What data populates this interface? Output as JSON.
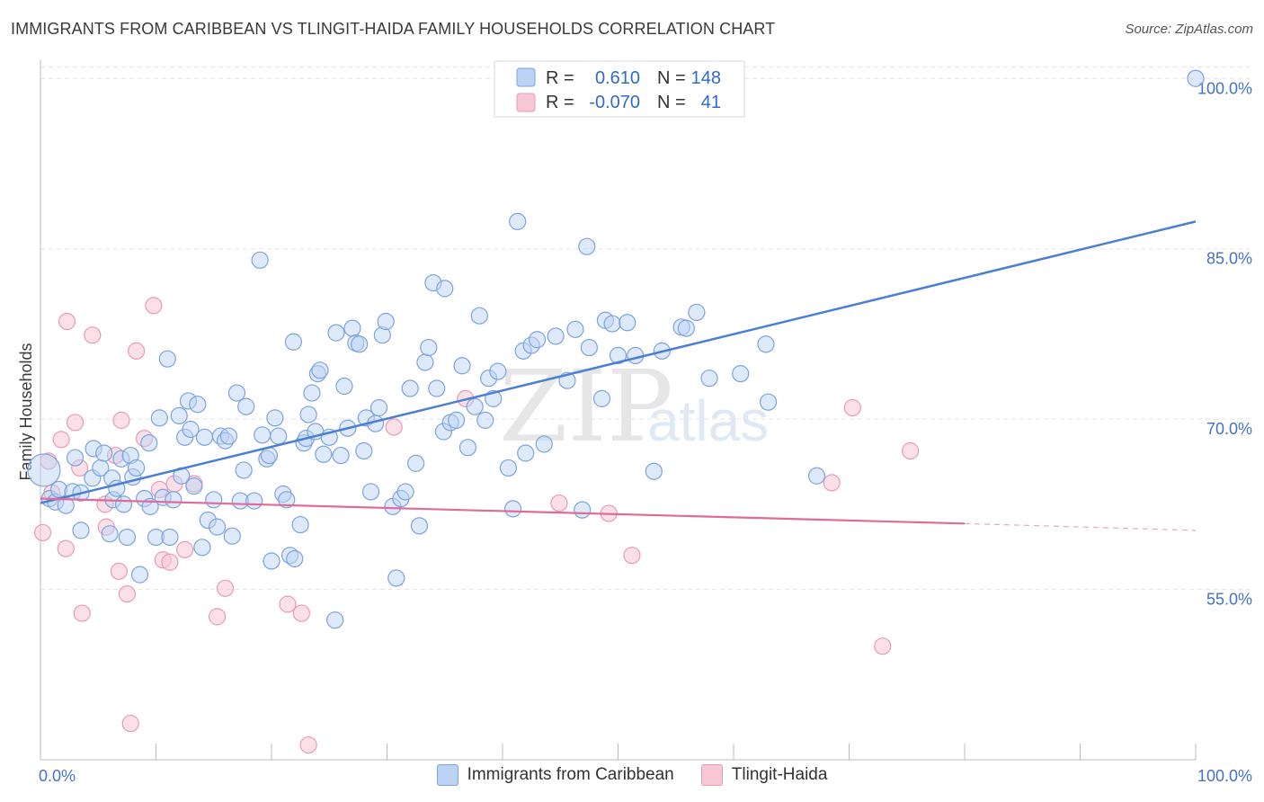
{
  "title": "IMMIGRANTS FROM CARIBBEAN VS TLINGIT-HAIDA FAMILY HOUSEHOLDS CORRELATION CHART",
  "source": "Source: ZipAtlas.com",
  "watermark": {
    "zip": "ZIP",
    "atlas": "atlas"
  },
  "colors": {
    "blue": "#4a7fd4",
    "blue_fill": "#bdd3f3",
    "pink": "#e06b98",
    "pink_fill": "#f7c7d6",
    "tick": "#4472c4"
  },
  "legend": {
    "r_label": "R =",
    "n_label": "N =",
    "rows": [
      {
        "r": "0.610",
        "n": "148"
      },
      {
        "r": "-0.070",
        "n": "41"
      }
    ]
  },
  "bottom_legend": {
    "blue": "Immigrants from Caribbean",
    "pink": "Tlingit-Haida"
  },
  "chart_data": {
    "type": "scatter",
    "ylabel": "Family Households",
    "xlim": [
      0,
      100
    ],
    "ylim": [
      40,
      102
    ],
    "x_tick_labels": [
      "0.0%",
      "100.0%"
    ],
    "y_ticks": [
      55,
      70,
      85,
      100
    ],
    "y_tick_labels": [
      "55.0%",
      "70.0%",
      "85.0%",
      "100.0%"
    ],
    "grid": true,
    "series": [
      {
        "name": "Immigrants from Caribbean",
        "trend": {
          "x": [
            0,
            100
          ],
          "y": [
            62.6,
            87.4
          ]
        },
        "points": [
          [
            0.3,
            65.5
          ],
          [
            0.8,
            63
          ],
          [
            1.3,
            62.7
          ],
          [
            1.6,
            63.8
          ],
          [
            2.2,
            62.4
          ],
          [
            2.8,
            63.6
          ],
          [
            3,
            66.6
          ],
          [
            3.5,
            63.5
          ],
          [
            3.5,
            60.2
          ],
          [
            4.5,
            64.8
          ],
          [
            4.6,
            67.4
          ],
          [
            5.2,
            65.7
          ],
          [
            5.5,
            67
          ],
          [
            6,
            59.9
          ],
          [
            6.2,
            64.8
          ],
          [
            6.3,
            62.9
          ],
          [
            6.6,
            63.9
          ],
          [
            7,
            66.5
          ],
          [
            7.2,
            62.5
          ],
          [
            7.5,
            59.6
          ],
          [
            7.8,
            66.8
          ],
          [
            8,
            64.9
          ],
          [
            8.3,
            65.7
          ],
          [
            8.6,
            56.3
          ],
          [
            9,
            63
          ],
          [
            9.4,
            67.9
          ],
          [
            9.5,
            62.3
          ],
          [
            10,
            59.6
          ],
          [
            10.3,
            70.1
          ],
          [
            10.6,
            63.1
          ],
          [
            11,
            75.3
          ],
          [
            11.2,
            59.6
          ],
          [
            11.5,
            62.9
          ],
          [
            12,
            70.3
          ],
          [
            12.2,
            65
          ],
          [
            12.5,
            68.4
          ],
          [
            12.8,
            71.6
          ],
          [
            13,
            69.1
          ],
          [
            13.3,
            64.1
          ],
          [
            13.6,
            71.3
          ],
          [
            14,
            58.7
          ],
          [
            14.2,
            68.4
          ],
          [
            14.5,
            61.1
          ],
          [
            15,
            62.9
          ],
          [
            15.3,
            60.5
          ],
          [
            15.6,
            68.5
          ],
          [
            16,
            68.1
          ],
          [
            16.3,
            68.5
          ],
          [
            16.6,
            59.7
          ],
          [
            17,
            72.3
          ],
          [
            17.3,
            62.8
          ],
          [
            17.6,
            65.5
          ],
          [
            17.8,
            71.1
          ],
          [
            18.5,
            62.8
          ],
          [
            19,
            84
          ],
          [
            19.2,
            68.6
          ],
          [
            19.6,
            66.5
          ],
          [
            19.8,
            66.8
          ],
          [
            20,
            57.5
          ],
          [
            20.3,
            70.1
          ],
          [
            20.6,
            68.5
          ],
          [
            21,
            63.4
          ],
          [
            21.3,
            62.9
          ],
          [
            21.6,
            58
          ],
          [
            21.9,
            76.8
          ],
          [
            22,
            57.7
          ],
          [
            22.5,
            60.7
          ],
          [
            22.8,
            67.9
          ],
          [
            23,
            68.3
          ],
          [
            23.2,
            70.4
          ],
          [
            23.5,
            72.3
          ],
          [
            23.8,
            68.9
          ],
          [
            24,
            74
          ],
          [
            24.2,
            74.3
          ],
          [
            24.5,
            66.9
          ],
          [
            25,
            68.4
          ],
          [
            25.5,
            52.3
          ],
          [
            25.6,
            77.6
          ],
          [
            26,
            66.8
          ],
          [
            26.3,
            72.9
          ],
          [
            26.6,
            69.2
          ],
          [
            27,
            78
          ],
          [
            27.3,
            76.7
          ],
          [
            27.6,
            76.6
          ],
          [
            28,
            67.2
          ],
          [
            28.2,
            70.1
          ],
          [
            28.6,
            63.6
          ],
          [
            29,
            69.6
          ],
          [
            29.3,
            71
          ],
          [
            29.6,
            77.4
          ],
          [
            29.9,
            78.6
          ],
          [
            30.5,
            62.3
          ],
          [
            30.8,
            56
          ],
          [
            31.2,
            63
          ],
          [
            31.6,
            63.6
          ],
          [
            32,
            72.7
          ],
          [
            32.5,
            66.1
          ],
          [
            32.8,
            60.6
          ],
          [
            33.3,
            75
          ],
          [
            33.6,
            76.3
          ],
          [
            34,
            82
          ],
          [
            34.3,
            72.7
          ],
          [
            34.9,
            68.9
          ],
          [
            35,
            81.5
          ],
          [
            35.5,
            69.7
          ],
          [
            36,
            69.9
          ],
          [
            36.5,
            74.7
          ],
          [
            37,
            67.5
          ],
          [
            37.6,
            71.1
          ],
          [
            38,
            79.1
          ],
          [
            38.5,
            69.9
          ],
          [
            38.8,
            73.6
          ],
          [
            39.2,
            71.8
          ],
          [
            39.6,
            74.2
          ],
          [
            40.5,
            65.7
          ],
          [
            40.9,
            62.1
          ],
          [
            41.3,
            87.4
          ],
          [
            41.8,
            76
          ],
          [
            42,
            67
          ],
          [
            42.5,
            76.5
          ],
          [
            43,
            77
          ],
          [
            43.6,
            67.8
          ],
          [
            44.6,
            77.3
          ],
          [
            45.6,
            73.4
          ],
          [
            46.3,
            77.9
          ],
          [
            46.9,
            62
          ],
          [
            47.3,
            85.2
          ],
          [
            47.5,
            76.3
          ],
          [
            48.6,
            71.8
          ],
          [
            48.9,
            78.7
          ],
          [
            49.5,
            78.4
          ],
          [
            50,
            75.6
          ],
          [
            50.8,
            78.5
          ],
          [
            51.5,
            75.6
          ],
          [
            53.1,
            65.4
          ],
          [
            53.8,
            76
          ],
          [
            55.5,
            78.1
          ],
          [
            55.9,
            78
          ],
          [
            56.8,
            79.4
          ],
          [
            57.9,
            73.6
          ],
          [
            60.6,
            74
          ],
          [
            62.8,
            76.6
          ],
          [
            63,
            71.5
          ],
          [
            67.2,
            65
          ],
          [
            100,
            100
          ]
        ]
      },
      {
        "name": "Tlingit-Haida",
        "trend": {
          "x": [
            0,
            80
          ],
          "y": [
            63.0,
            60.8
          ],
          "dash_to": [
            100,
            60.2
          ]
        },
        "points": [
          [
            0.2,
            60
          ],
          [
            0.7,
            66.3
          ],
          [
            1,
            63.5
          ],
          [
            1.8,
            68.2
          ],
          [
            2.2,
            58.6
          ],
          [
            2.3,
            78.6
          ],
          [
            3,
            69.7
          ],
          [
            3.4,
            65.7
          ],
          [
            3.6,
            52.9
          ],
          [
            4.5,
            77.4
          ],
          [
            5.7,
            60.5
          ],
          [
            5.6,
            62.5
          ],
          [
            6.5,
            66.8
          ],
          [
            6.8,
            56.6
          ],
          [
            7,
            69.9
          ],
          [
            7.5,
            54.6
          ],
          [
            7.8,
            43.2
          ],
          [
            8.3,
            76
          ],
          [
            9,
            68.3
          ],
          [
            9.8,
            80
          ],
          [
            10.3,
            63.8
          ],
          [
            10.6,
            57.6
          ],
          [
            11.2,
            57.4
          ],
          [
            11.6,
            64.3
          ],
          [
            12.5,
            58.5
          ],
          [
            13.3,
            64.3
          ],
          [
            15.3,
            52.6
          ],
          [
            16,
            55.1
          ],
          [
            21.4,
            53.7
          ],
          [
            22.6,
            52.9
          ],
          [
            23.2,
            41.3
          ],
          [
            30.6,
            69.3
          ],
          [
            36.8,
            71.8
          ],
          [
            44.9,
            62.6
          ],
          [
            49.2,
            61.7
          ],
          [
            51.2,
            58
          ],
          [
            68.5,
            64.4
          ],
          [
            70.3,
            71
          ],
          [
            72.9,
            50
          ],
          [
            75.3,
            67.2
          ]
        ]
      }
    ]
  }
}
